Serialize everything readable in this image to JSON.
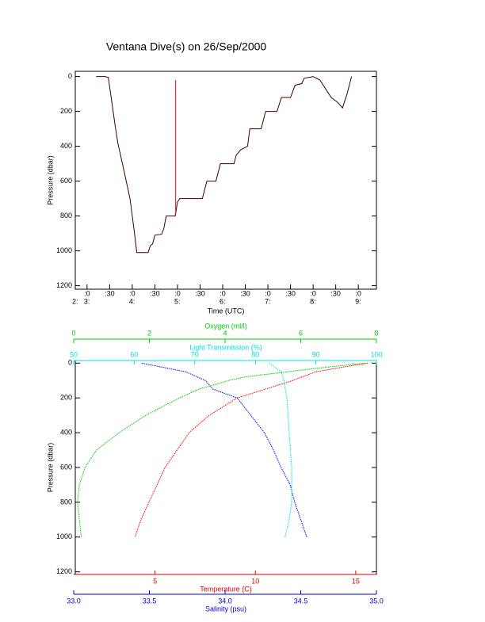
{
  "chart_data": [
    {
      "type": "line",
      "title": "Ventana Dive(s) on 26/Sep/2000",
      "xlabel": "Time (UTC)",
      "ylabel": "Pressure (dbar)",
      "xlim": [
        2.74,
        9.4
      ],
      "ylim": [
        1220,
        -30
      ],
      "yticks": [
        0,
        200,
        400,
        600,
        800,
        1000,
        1200
      ],
      "xticks": [
        {
          "value": 3,
          "label": ":0"
        },
        {
          "value": 3.5,
          "label": ":30"
        },
        {
          "value": 4,
          "label": ":0"
        },
        {
          "value": 4.5,
          "label": ":30"
        },
        {
          "value": 5,
          "label": ":0"
        },
        {
          "value": 5.5,
          "label": ":30"
        },
        {
          "value": 6,
          "label": ":0"
        },
        {
          "value": 6.5,
          "label": ":30"
        },
        {
          "value": 7,
          "label": ":0"
        },
        {
          "value": 7.5,
          "label": ":30"
        },
        {
          "value": 8,
          "label": ":0"
        },
        {
          "value": 8.5,
          "label": ":30"
        },
        {
          "value": 9,
          "label": ":0"
        }
      ],
      "x_hour_labels": [
        {
          "value": 2.74,
          "label": "2:"
        },
        {
          "value": 3,
          "label": "3:"
        },
        {
          "value": 4,
          "label": "4:"
        },
        {
          "value": 5,
          "label": "5:"
        },
        {
          "value": 6,
          "label": "6:"
        },
        {
          "value": 7,
          "label": "7:"
        },
        {
          "value": 8,
          "label": "8:"
        },
        {
          "value": 9,
          "label": "9:"
        }
      ],
      "series": [
        {
          "color": "#3a0000",
          "x": [
            3.2,
            3.4,
            3.47,
            3.55,
            3.62,
            3.68,
            3.8,
            3.95,
            4.05,
            4.1,
            4.35,
            4.4,
            4.45,
            4.5,
            4.65,
            4.7,
            4.75,
            4.95,
            5.0,
            5.05,
            5.55,
            5.65,
            5.85,
            5.95,
            6.25,
            6.3,
            6.4,
            6.55,
            6.6,
            6.85,
            6.95,
            7.2,
            7.3,
            7.5,
            7.6,
            7.75,
            7.8,
            8.0,
            8.15,
            8.25,
            8.4,
            8.55,
            8.65,
            8.75,
            8.85
          ],
          "values": [
            0,
            0,
            5,
            150,
            280,
            380,
            520,
            700,
            900,
            1010,
            1010,
            970,
            960,
            910,
            905,
            870,
            800,
            800,
            720,
            700,
            700,
            600,
            600,
            500,
            500,
            450,
            420,
            400,
            300,
            300,
            200,
            200,
            120,
            120,
            50,
            40,
            10,
            0,
            20,
            60,
            120,
            150,
            180,
            100,
            0
          ]
        },
        {
          "color": "#ff0000",
          "x": [
            4.96,
            4.96
          ],
          "values": [
            790,
            20
          ]
        }
      ]
    },
    {
      "type": "profile",
      "ylabel": "Pressure (dbar)",
      "ylim": [
        1215,
        -15
      ],
      "yticks": [
        0,
        200,
        400,
        600,
        800,
        1000,
        1200
      ],
      "x_axes": [
        {
          "label": "Light Transmission (%)",
          "color": "#00e0e0",
          "side": "top",
          "lim": [
            50,
            100
          ],
          "ticks": [
            50,
            60,
            70,
            80,
            90,
            100
          ]
        },
        {
          "label": "Oxygen (ml/l)",
          "color": "#00cc00",
          "side": "top",
          "lim": [
            0,
            8
          ],
          "ticks": [
            0,
            2,
            4,
            6,
            8
          ]
        },
        {
          "label": "Temperature (C)",
          "color": "#dd0000",
          "side": "bottom",
          "lim": [
            0.95,
            16.03
          ],
          "ticks": [
            5,
            10,
            15
          ]
        },
        {
          "label": "Salinity (psu)",
          "color": "#0000cc",
          "side": "bottom",
          "lim": [
            33,
            35
          ],
          "ticks": [
            {
              "value": 33,
              "label": "33.0"
            },
            33.5,
            {
              "value": 34,
              "label": "34.0"
            },
            34.5,
            {
              "value": 35,
              "label": "35.0"
            }
          ]
        }
      ],
      "series": [
        {
          "axis": 2,
          "color": "#ff0000",
          "pressure": [
            0,
            20,
            50,
            100,
            200,
            300,
            400,
            500,
            600,
            700,
            800,
            900,
            1000
          ],
          "values": [
            15.6,
            14.5,
            13,
            11.86,
            9.1,
            7.7,
            6.7,
            6.1,
            5.5,
            5.1,
            4.7,
            4.3,
            4.0
          ]
        },
        {
          "axis": 3,
          "color": "#0000ff",
          "pressure": [
            0,
            50,
            100,
            150,
            200,
            300,
            400,
            500,
            600,
            700,
            800,
            900,
            1000
          ],
          "values": [
            33.45,
            33.74,
            33.87,
            33.92,
            34.08,
            34.17,
            34.26,
            34.32,
            34.37,
            34.43,
            34.46,
            34.5,
            34.54
          ]
        },
        {
          "axis": 1,
          "color": "#00cc00",
          "pressure": [
            0,
            30,
            80,
            100,
            150,
            200,
            300,
            400,
            500,
            600,
            700,
            800,
            900,
            1000
          ],
          "values": [
            7.7,
            6.4,
            4.5,
            4.1,
            3.3,
            2.8,
            1.9,
            1.2,
            0.6,
            0.3,
            0.15,
            0.1,
            0.15,
            0.2
          ]
        },
        {
          "axis": 0,
          "color": "#00e0e0",
          "pressure": [
            0,
            50,
            100,
            200,
            400,
            600,
            800,
            900,
            1000
          ],
          "values": [
            82.3,
            84.3,
            84.7,
            85.2,
            85.6,
            86.0,
            86.0,
            85.6,
            84.9
          ]
        }
      ]
    }
  ]
}
